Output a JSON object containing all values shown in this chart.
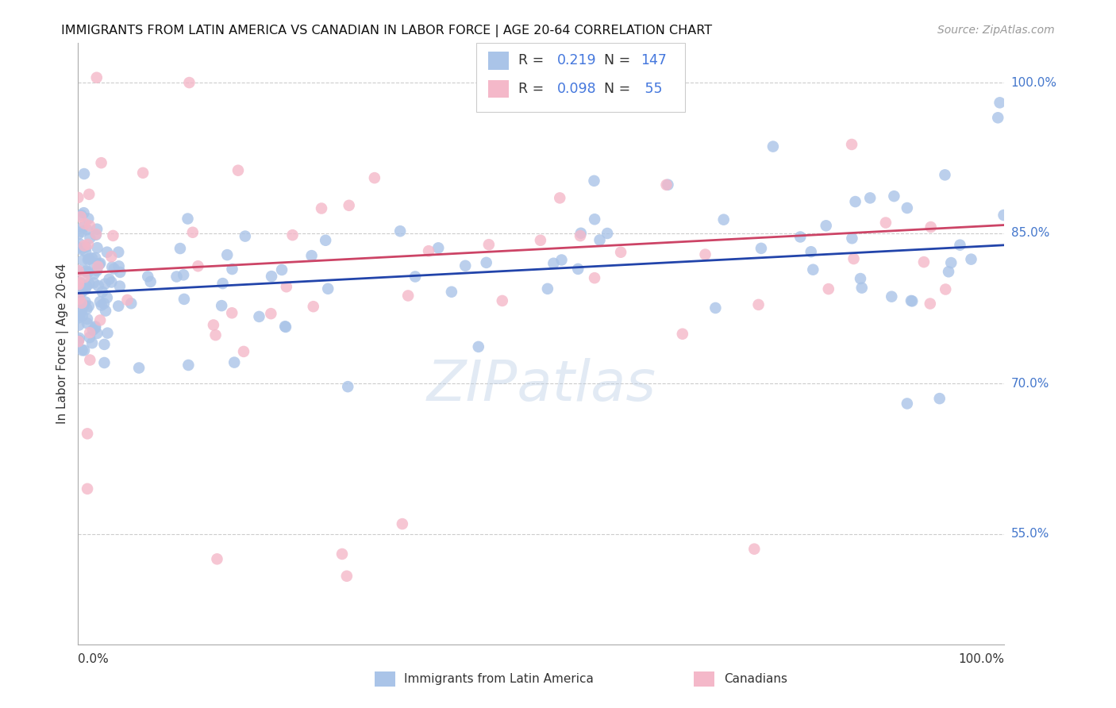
{
  "title": "IMMIGRANTS FROM LATIN AMERICA VS CANADIAN IN LABOR FORCE | AGE 20-64 CORRELATION CHART",
  "source": "Source: ZipAtlas.com",
  "ylabel": "In Labor Force | Age 20-64",
  "xlim": [
    0.0,
    1.0
  ],
  "ylim": [
    0.44,
    1.04
  ],
  "blue_R": 0.219,
  "blue_N": 147,
  "pink_R": 0.098,
  "pink_N": 55,
  "background_color": "#ffffff",
  "grid_color": "#cccccc",
  "blue_color": "#aac4e8",
  "pink_color": "#f4b8c9",
  "blue_line_color": "#2244aa",
  "pink_line_color": "#cc4466",
  "blue_line_start_y": 0.79,
  "blue_line_end_y": 0.838,
  "pink_line_start_y": 0.81,
  "pink_line_end_y": 0.858,
  "right_tick_color": "#4477cc",
  "yticks": [
    1.0,
    0.85,
    0.7,
    0.55
  ],
  "ytick_labels": [
    "100.0%",
    "85.0%",
    "70.0%",
    "55.0%"
  ]
}
